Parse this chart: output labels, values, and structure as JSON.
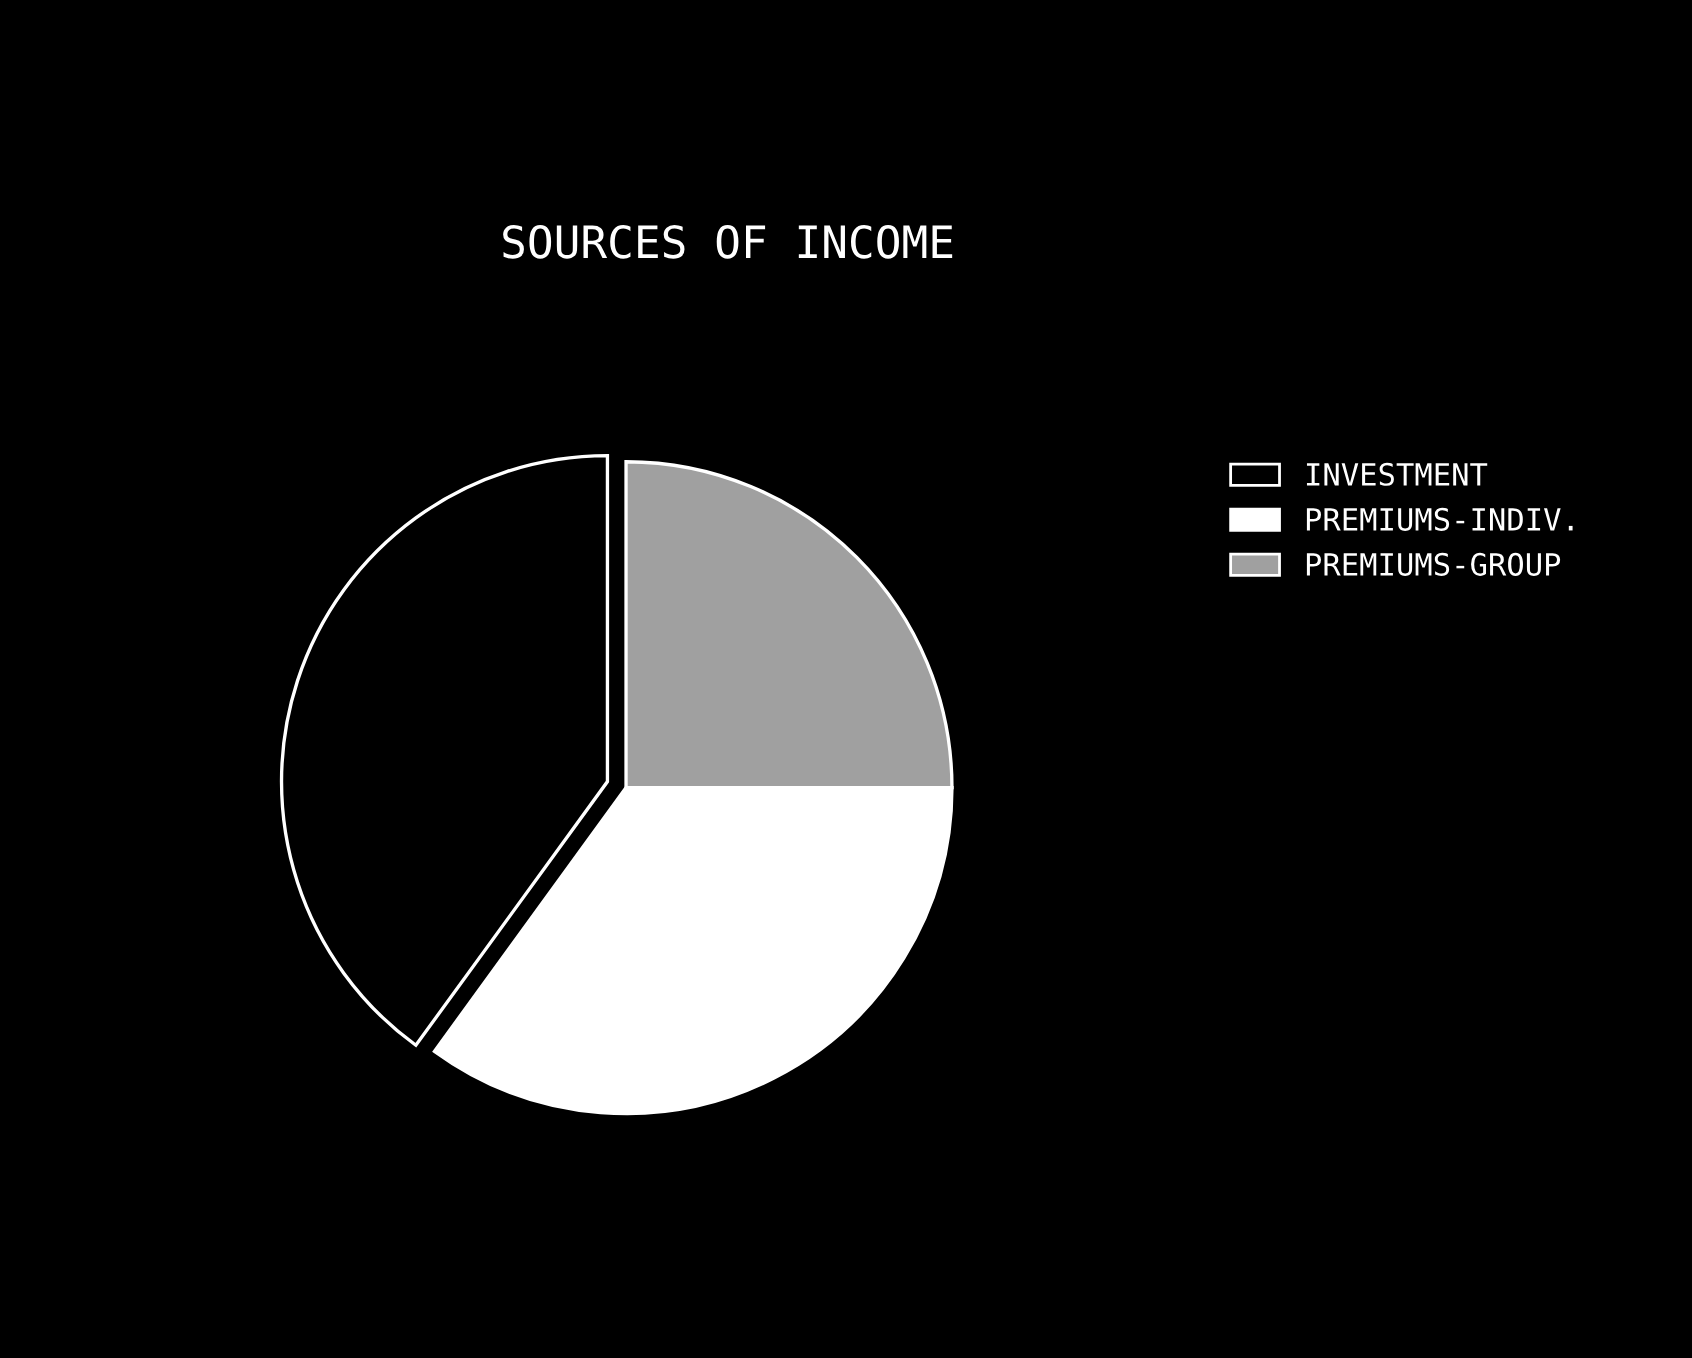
{
  "chart_data": {
    "type": "pie",
    "title": "SOURCES OF INCOME",
    "categories": [
      "INVESTMENT",
      "PREMIUMS-INDIV.",
      "PREMIUMS-GROUP"
    ],
    "values": [
      40,
      35,
      25
    ],
    "colors": [
      "#000000",
      "#ffffff",
      "#a0a0a0"
    ],
    "legend": "top right"
  }
}
